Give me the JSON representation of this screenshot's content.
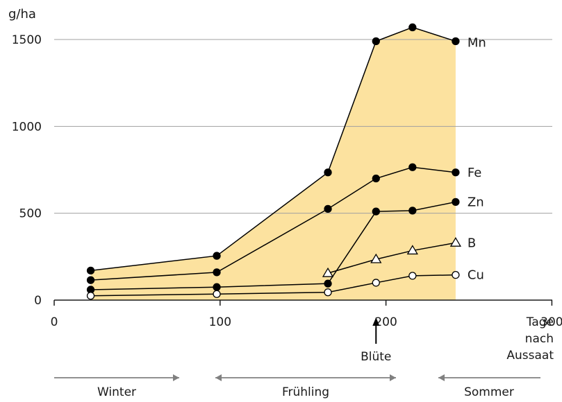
{
  "chart_data": {
    "type": "line",
    "ylabel": "g/ha",
    "xlabel_lines": [
      "Tage",
      "nach",
      "Aussaat"
    ],
    "xlim": [
      0,
      300
    ],
    "ylim": [
      0,
      1500
    ],
    "x_ticks": [
      0,
      100,
      200,
      300
    ],
    "y_ticks": [
      0,
      500,
      1000,
      1500
    ],
    "grid": "horizontal",
    "colors": {
      "fill": "#fce29f",
      "line": "#000000",
      "grid": "#a0a0a0",
      "arrow": "#808080"
    },
    "series": [
      {
        "name": "Mn",
        "marker": "filled-circle",
        "x": [
          22,
          98,
          165,
          194,
          216,
          242
        ],
        "y": [
          170,
          255,
          735,
          1490,
          1570,
          1490
        ]
      },
      {
        "name": "Fe",
        "marker": "filled-circle",
        "x": [
          22,
          98,
          165,
          194,
          216,
          242
        ],
        "y": [
          115,
          160,
          525,
          700,
          765,
          735
        ]
      },
      {
        "name": "Zn",
        "marker": "filled-circle",
        "x": [
          22,
          98,
          165,
          194,
          216,
          242
        ],
        "y": [
          60,
          75,
          95,
          510,
          515,
          565
        ]
      },
      {
        "name": "B",
        "marker": "open-triangle",
        "x": [
          165,
          194,
          216,
          242
        ],
        "y": [
          155,
          235,
          285,
          330
        ]
      },
      {
        "name": "Cu",
        "marker": "open-circle",
        "x": [
          22,
          98,
          165,
          194,
          216,
          242
        ],
        "y": [
          25,
          35,
          45,
          100,
          140,
          145
        ]
      }
    ],
    "annotations": [
      {
        "text": "Blüte",
        "x": 194
      }
    ],
    "seasons": [
      {
        "label": "Winter",
        "direction": "right"
      },
      {
        "label": "Frühling",
        "direction": "both"
      },
      {
        "label": "Sommer",
        "direction": "left"
      }
    ]
  }
}
